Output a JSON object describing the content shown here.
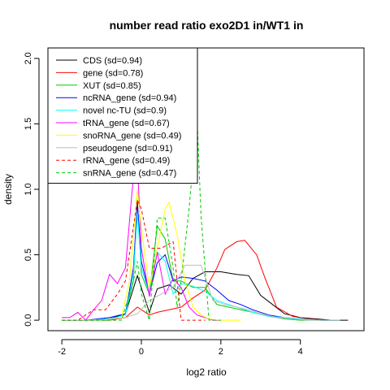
{
  "chart_data": {
    "type": "line",
    "title": "number read ratio exo2D1 in/WT1 in",
    "xlabel": "log2 ratio",
    "ylabel": "density",
    "xlim": [
      -2.35,
      5.6
    ],
    "ylim": [
      -0.08,
      2.08
    ],
    "xticks": [
      -2,
      0,
      2,
      4
    ],
    "xtick_labels": [
      "-2",
      "0",
      "2",
      "4"
    ],
    "yticks": [
      0.0,
      0.5,
      1.0,
      1.5,
      2.0
    ],
    "ytick_labels": [
      "0.0",
      "0.5",
      "1.0",
      "1.5",
      "2.0"
    ],
    "legend_position": "top-left",
    "series": [
      {
        "name": "CDS (sd=0.94)",
        "color": "#000000",
        "dash": "solid",
        "x": [
          -2.0,
          -1.4,
          -0.8,
          -0.4,
          -0.1,
          0.2,
          0.4,
          0.7,
          1.0,
          1.3,
          1.6,
          2.0,
          2.4,
          2.7,
          3.0,
          3.3,
          3.6,
          4.0,
          4.4,
          4.8,
          5.2
        ],
        "y": [
          0.0,
          0.0,
          0.01,
          0.05,
          0.34,
          0.06,
          0.24,
          0.27,
          0.2,
          0.32,
          0.37,
          0.37,
          0.35,
          0.34,
          0.19,
          0.12,
          0.05,
          0.02,
          0.01,
          0.0,
          0.0
        ]
      },
      {
        "name": "gene (sd=0.78)",
        "color": "#ff0000",
        "dash": "solid",
        "x": [
          -2.0,
          -1.4,
          -0.8,
          -0.4,
          -0.1,
          0.2,
          0.4,
          0.7,
          1.0,
          1.3,
          1.6,
          1.9,
          2.1,
          2.4,
          2.6,
          2.9,
          3.1,
          3.4,
          3.8,
          4.2,
          4.6,
          5.0
        ],
        "y": [
          0.0,
          0.0,
          0.0,
          0.02,
          0.1,
          0.04,
          0.06,
          0.08,
          0.1,
          0.17,
          0.23,
          0.4,
          0.54,
          0.6,
          0.61,
          0.5,
          0.33,
          0.1,
          0.03,
          0.01,
          0.0,
          0.0
        ]
      },
      {
        "name": "XUT (sd=0.85)",
        "color": "#00cc00",
        "dash": "solid",
        "x": [
          -2.0,
          -1.4,
          -0.8,
          -0.4,
          -0.2,
          -0.1,
          0.0,
          0.2,
          0.4,
          0.6,
          0.8,
          1.0,
          1.3,
          1.6,
          1.9,
          2.2,
          2.5,
          2.8,
          3.2,
          3.6,
          4.0,
          4.5,
          5.0
        ],
        "y": [
          0.0,
          0.0,
          0.0,
          0.05,
          0.3,
          0.92,
          0.35,
          0.2,
          0.72,
          0.62,
          0.3,
          0.3,
          0.25,
          0.25,
          0.12,
          0.1,
          0.08,
          0.06,
          0.03,
          0.01,
          0.0,
          0.0,
          0.0
        ]
      },
      {
        "name": "ncRNA_gene (sd=0.94)",
        "color": "#0000ff",
        "dash": "solid",
        "x": [
          -2.0,
          -1.4,
          -0.8,
          -0.4,
          -0.2,
          -0.1,
          0.0,
          0.2,
          0.4,
          0.6,
          0.8,
          1.0,
          1.3,
          1.6,
          1.9,
          2.2,
          2.5,
          2.8,
          3.2,
          3.6,
          4.0,
          4.5,
          5.0
        ],
        "y": [
          0.0,
          0.0,
          0.02,
          0.05,
          0.4,
          0.9,
          0.45,
          0.2,
          0.44,
          0.5,
          0.3,
          0.33,
          0.32,
          0.3,
          0.23,
          0.15,
          0.12,
          0.08,
          0.04,
          0.02,
          0.01,
          0.0,
          0.0
        ]
      },
      {
        "name": "novel nc-TU (sd=0.9)",
        "color": "#00ffff",
        "dash": "solid",
        "x": [
          -2.0,
          -1.4,
          -0.8,
          -0.4,
          -0.2,
          -0.1,
          0.0,
          0.2,
          0.4,
          0.6,
          0.8,
          1.0,
          1.3,
          1.6,
          1.9,
          2.2,
          2.5,
          2.8,
          3.2,
          3.6,
          4.0,
          4.5,
          5.0
        ],
        "y": [
          0.0,
          0.0,
          0.01,
          0.04,
          0.35,
          0.82,
          0.4,
          0.2,
          0.52,
          0.45,
          0.2,
          0.28,
          0.26,
          0.22,
          0.15,
          0.12,
          0.09,
          0.06,
          0.03,
          0.02,
          0.01,
          0.0,
          0.0
        ]
      },
      {
        "name": "tRNA_gene (sd=0.67)",
        "color": "#ff00ff",
        "dash": "solid",
        "x": [
          -2.0,
          -1.8,
          -1.6,
          -1.4,
          -1.2,
          -1.0,
          -0.8,
          -0.6,
          -0.4,
          -0.2,
          -0.1,
          0.0,
          0.2,
          0.4,
          0.6,
          0.8,
          1.0,
          1.2,
          1.4,
          1.6,
          1.8,
          2.0
        ],
        "y": [
          0.02,
          0.02,
          0.06,
          0.0,
          0.08,
          0.15,
          0.35,
          0.28,
          0.4,
          1.1,
          1.2,
          0.55,
          0.18,
          0.52,
          0.2,
          0.32,
          0.25,
          0.1,
          0.04,
          0.02,
          0.0,
          0.0
        ]
      },
      {
        "name": "snoRNA_gene (sd=0.49)",
        "color": "#ffff00",
        "dash": "solid",
        "x": [
          -2.0,
          -1.0,
          -0.5,
          -0.3,
          -0.1,
          0.0,
          0.2,
          0.4,
          0.6,
          0.7,
          0.9,
          1.1,
          1.3,
          1.5,
          1.7,
          2.0,
          2.5
        ],
        "y": [
          0.0,
          0.0,
          0.02,
          0.3,
          1.0,
          0.7,
          0.25,
          0.55,
          0.85,
          0.9,
          0.65,
          0.3,
          0.1,
          0.04,
          0.01,
          0.0,
          0.0
        ]
      },
      {
        "name": "pseudogene (sd=0.91)",
        "color": "#bebebe",
        "dash": "solid",
        "x": [
          -2.0,
          -1.0,
          -0.4,
          -0.1,
          0.2,
          0.5,
          0.8,
          1.1,
          1.3,
          1.5,
          1.8,
          2.1,
          2.4,
          2.7,
          3.0,
          3.4,
          3.8,
          4.2,
          4.6,
          5.0
        ],
        "y": [
          0.0,
          0.0,
          0.02,
          0.05,
          0.15,
          0.2,
          0.25,
          0.42,
          0.42,
          0.42,
          0.15,
          0.12,
          0.1,
          0.08,
          0.05,
          0.02,
          0.01,
          0.0,
          0.0,
          0.0
        ]
      },
      {
        "name": "rRNA_gene (sd=0.49)",
        "color": "#ff0000",
        "dash": "dashed",
        "x": [
          -2.0,
          -1.6,
          -1.2,
          -0.9,
          -0.6,
          -0.4,
          -0.1,
          0.0,
          0.2,
          0.5,
          0.8,
          1.0,
          1.3,
          1.6
        ],
        "y": [
          0.0,
          0.0,
          0.08,
          0.08,
          0.2,
          0.3,
          0.92,
          0.85,
          0.55,
          0.55,
          0.6,
          0.0,
          0.0,
          0.0
        ]
      },
      {
        "name": "snRNA_gene (sd=0.47)",
        "color": "#00cc00",
        "dash": "dashed",
        "x": [
          -2.0,
          -1.0,
          -0.5,
          -0.2,
          -0.1,
          0.0,
          0.2,
          0.4,
          0.6,
          0.8,
          0.9,
          1.0,
          1.2,
          1.4,
          1.5,
          1.7,
          2.0
        ],
        "y": [
          0.0,
          0.0,
          0.0,
          0.3,
          0.45,
          0.2,
          0.0,
          0.78,
          0.78,
          0.4,
          0.1,
          0.3,
          0.85,
          1.55,
          0.8,
          0.0,
          0.0
        ]
      }
    ]
  }
}
